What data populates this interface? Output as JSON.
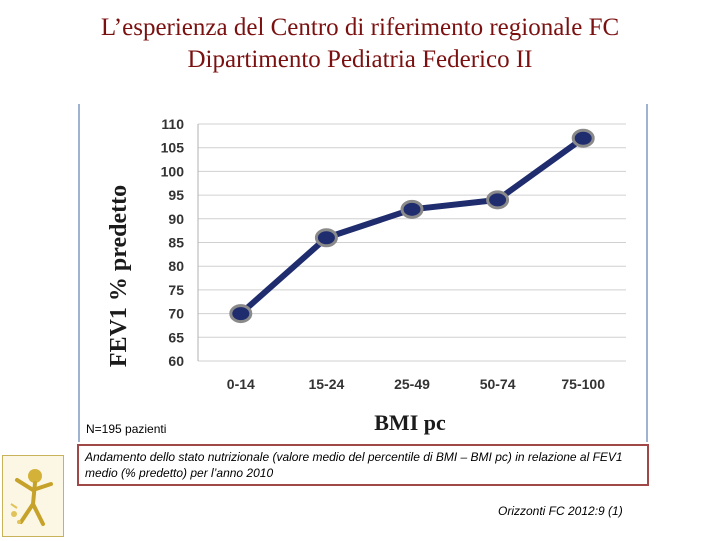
{
  "title": {
    "line1": "L’esperienza del Centro di riferimento regionale FC",
    "line2": "Dipartimento Pediatria Federico II"
  },
  "chart_data": {
    "type": "line",
    "title": "",
    "xlabel": "BMI pc",
    "ylabel": "FEV1 % predetto",
    "categories": [
      "0-14",
      "15-24",
      "25-49",
      "50-74",
      "75-100"
    ],
    "series": [
      {
        "values": [
          70,
          86,
          92,
          94,
          107
        ]
      }
    ],
    "ylim": [
      60,
      110
    ],
    "yticks": [
      60,
      65,
      70,
      75,
      80,
      85,
      90,
      95,
      100,
      105,
      110
    ],
    "grid": true,
    "legend": "none",
    "line_color": "#1f2c6e",
    "marker_color": "#1f2c6e",
    "marker_outline": "#8a8a8a"
  },
  "note": "N=195 pazienti",
  "caption": "Andamento dello stato nutrizionale (valore medio del percentile di BMI – BMI pc) in relazione al FEV1 medio (% predetto) per l’anno 2010",
  "source": "Orizzonti FC 2012:9 (1)",
  "logo_icon": "cystic-fibrosis-figure-icon"
}
